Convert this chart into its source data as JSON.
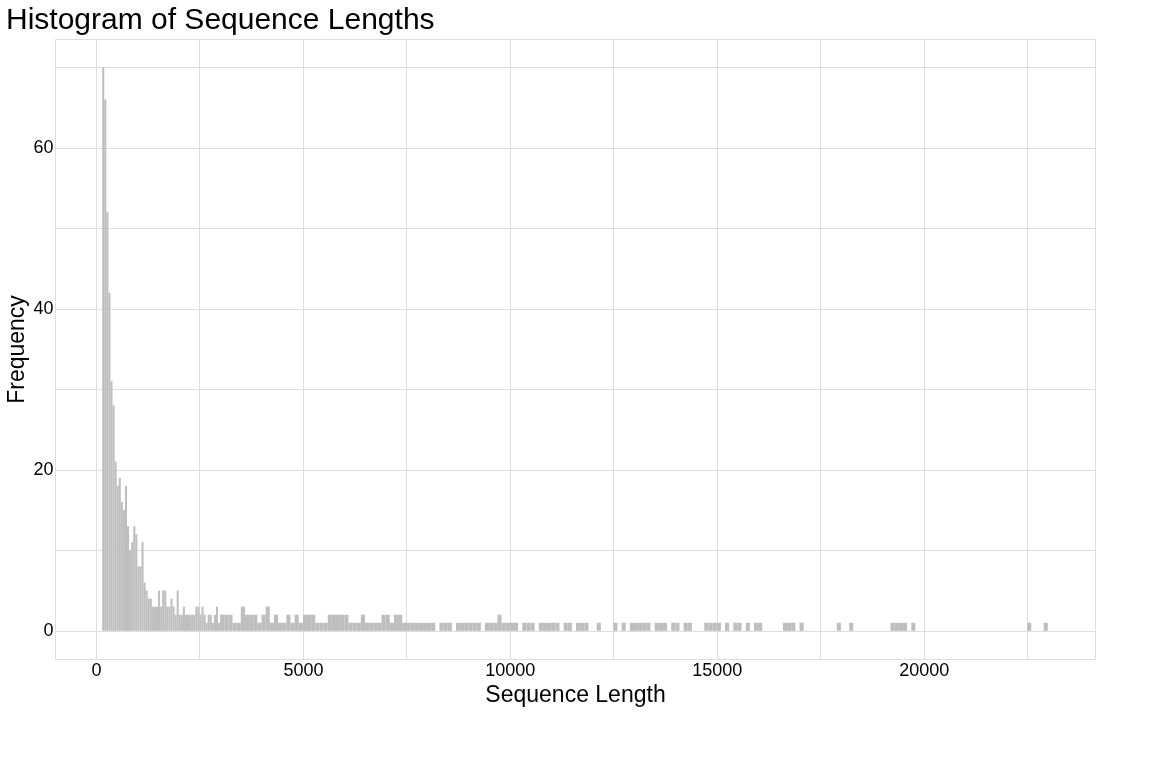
{
  "chart_data": {
    "type": "histogram",
    "title": "Histogram of Sequence Lengths",
    "xlabel": "Sequence Length",
    "ylabel": "Frequency",
    "color": "#bebebe",
    "bins": [
      150,
      200,
      250,
      300,
      350,
      400,
      450,
      500,
      550,
      600,
      650,
      700,
      750,
      800,
      850,
      900,
      950,
      1000,
      1050,
      1100,
      1150,
      1200,
      1250,
      1300,
      1350,
      1400,
      1450,
      1500,
      1550,
      1600,
      1650,
      1700,
      1750,
      1800,
      1850,
      1900,
      1950,
      2000,
      2050,
      2100,
      2150,
      2200,
      2250,
      2300,
      2350,
      2400,
      2450,
      2500,
      2550,
      2600,
      2650,
      2700,
      2750,
      2800,
      2850,
      2900,
      2950,
      3000,
      3100,
      3200,
      3300,
      3400,
      3500,
      3600,
      3700,
      3800,
      3900,
      4000,
      4100,
      4200,
      4300,
      4400,
      4500,
      4600,
      4700,
      4800,
      4900,
      5000,
      5100,
      5200,
      5300,
      5400,
      5500,
      5600,
      5700,
      5800,
      5900,
      6000,
      6100,
      6200,
      6300,
      6400,
      6500,
      6600,
      6700,
      6800,
      6900,
      7000,
      7100,
      7200,
      7300,
      7400,
      7500,
      7600,
      7700,
      7800,
      7900,
      8000,
      8100,
      8200,
      8300,
      8400,
      8500,
      8600,
      8700,
      8800,
      8900,
      9000,
      9100,
      9200,
      9300,
      9400,
      9500,
      9600,
      9700,
      9800,
      9900,
      10000,
      10100,
      10200,
      10300,
      10400,
      10500,
      10600,
      10700,
      10800,
      10900,
      11000,
      11100,
      11200,
      11300,
      11400,
      11500,
      11600,
      11700,
      11800,
      11900,
      12100,
      12200,
      12500,
      12600,
      12700,
      12800,
      12900,
      13000,
      13100,
      13200,
      13300,
      13400,
      13500,
      13600,
      13700,
      13800,
      13900,
      14000,
      14100,
      14200,
      14300,
      14400,
      14700,
      14800,
      14900,
      15000,
      15100,
      15200,
      15300,
      15400,
      15500,
      15600,
      15700,
      15800,
      15900,
      16000,
      16100,
      16600,
      16700,
      16800,
      16900,
      17000,
      17100,
      17900,
      18000,
      18200,
      18300,
      19200,
      19300,
      19400,
      19500,
      19600,
      19700,
      19800,
      22500,
      22600,
      22900,
      23000
    ],
    "values": [
      70,
      66,
      52,
      42,
      31,
      28,
      21,
      18,
      19,
      16,
      15,
      18,
      13,
      10,
      11,
      13,
      12,
      8,
      8,
      11,
      6,
      5,
      4,
      4,
      3,
      3,
      3,
      5,
      3,
      5,
      5,
      3,
      3,
      4,
      3,
      2,
      5,
      2,
      2,
      3,
      2,
      2,
      2,
      2,
      2,
      3,
      3,
      2,
      3,
      2,
      1,
      2,
      2,
      1,
      2,
      3,
      1,
      2,
      2,
      2,
      1,
      1,
      3,
      2,
      2,
      2,
      1,
      2,
      3,
      1,
      2,
      1,
      1,
      2,
      1,
      2,
      1,
      2,
      2,
      2,
      1,
      1,
      1,
      2,
      2,
      2,
      2,
      2,
      1,
      1,
      1,
      2,
      1,
      1,
      1,
      1,
      2,
      2,
      1,
      2,
      2,
      1,
      1,
      1,
      1,
      1,
      1,
      1,
      1,
      0,
      1,
      1,
      1,
      0,
      1,
      1,
      1,
      1,
      1,
      1,
      0,
      1,
      1,
      1,
      2,
      1,
      1,
      1,
      1,
      0,
      1,
      1,
      1,
      0,
      1,
      1,
      1,
      1,
      1,
      0,
      1,
      1,
      0,
      1,
      1,
      1,
      0,
      1,
      0,
      1,
      0,
      1,
      0,
      1,
      1,
      1,
      1,
      1,
      0,
      1,
      1,
      1,
      0,
      1,
      1,
      0,
      1,
      1,
      0,
      1,
      1,
      1,
      1,
      0,
      1,
      0,
      1,
      1,
      0,
      1,
      0,
      1,
      1,
      0,
      1,
      1,
      1,
      0,
      1,
      0,
      1,
      0,
      1,
      0,
      1,
      1,
      1,
      1,
      0,
      1,
      0,
      1,
      0,
      1
    ],
    "xlim": [
      -990,
      24140
    ],
    "ylim": [
      -3.5,
      73.5
    ],
    "xticks": [
      0,
      {
        "value": 2500,
        "label": null
      },
      5000,
      {
        "value": 7500,
        "label": null
      },
      10000,
      {
        "value": 12500,
        "label": null
      },
      15000,
      {
        "value": 17500,
        "label": null
      },
      20000,
      {
        "value": 22500,
        "label": null
      }
    ],
    "yticks": [
      0,
      {
        "value": 10,
        "label": null
      },
      20,
      {
        "value": 30,
        "label": null
      },
      40,
      {
        "value": 50,
        "label": null
      },
      60,
      {
        "value": 70,
        "label": null
      }
    ],
    "grid": true
  }
}
